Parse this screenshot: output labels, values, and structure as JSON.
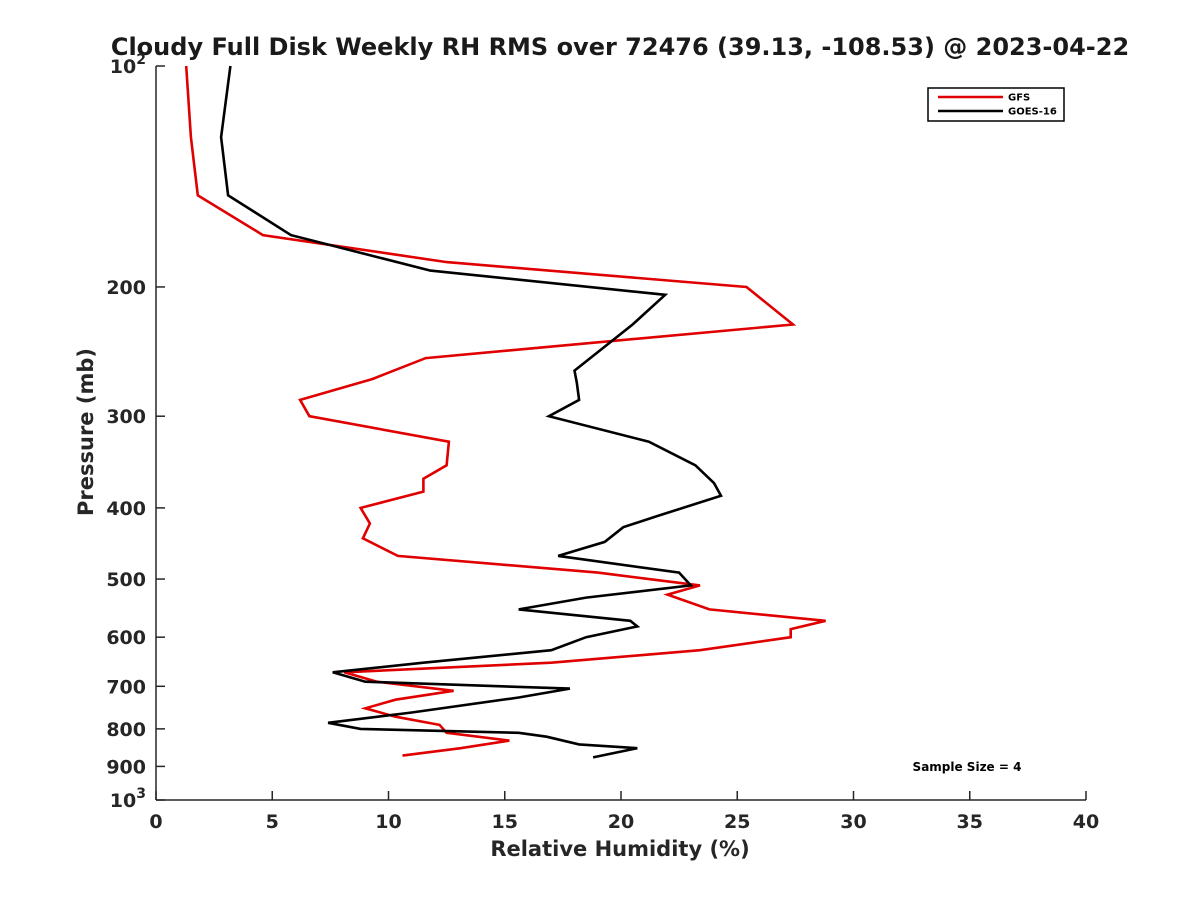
{
  "chart_data": {
    "type": "line",
    "title": "Cloudy Full Disk Weekly RH RMS over 72476 (39.13, -108.53) @ 2023-04-22",
    "xlabel": "Relative Humidity (%)",
    "ylabel": "Pressure (mb)",
    "xlim": [
      0,
      40
    ],
    "ylim": [
      100,
      1000
    ],
    "yscale": "log",
    "y_reversed": true,
    "xticks": [
      0,
      5,
      10,
      15,
      20,
      25,
      30,
      35,
      40
    ],
    "yticks": [
      {
        "value": 100,
        "base": "10",
        "exp": "2"
      },
      {
        "value": 200,
        "label": "200"
      },
      {
        "value": 300,
        "label": "300"
      },
      {
        "value": 400,
        "label": "400"
      },
      {
        "value": 500,
        "label": "500"
      },
      {
        "value": 600,
        "label": "600"
      },
      {
        "value": 700,
        "label": "700"
      },
      {
        "value": 800,
        "label": "800"
      },
      {
        "value": 900,
        "label": "900"
      },
      {
        "value": 1000,
        "base": "10",
        "exp": "3"
      }
    ],
    "grid": false,
    "legend_position": "top-right",
    "annotation": "Sample Size = 4",
    "series": [
      {
        "name": "GFS",
        "color": "#e00000",
        "points": [
          [
            1.3,
            100
          ],
          [
            1.5,
            125
          ],
          [
            1.8,
            150
          ],
          [
            4.6,
            170
          ],
          [
            12.5,
            185
          ],
          [
            25.4,
            200
          ],
          [
            27.4,
            225
          ],
          [
            11.6,
            250
          ],
          [
            9.3,
            267
          ],
          [
            6.2,
            285
          ],
          [
            6.6,
            300
          ],
          [
            12.6,
            325
          ],
          [
            12.5,
            350
          ],
          [
            11.5,
            365
          ],
          [
            11.5,
            380
          ],
          [
            8.8,
            400
          ],
          [
            9.2,
            420
          ],
          [
            8.9,
            440
          ],
          [
            10.4,
            465
          ],
          [
            19.0,
            490
          ],
          [
            23.4,
            510
          ],
          [
            22.0,
            525
          ],
          [
            23.8,
            550
          ],
          [
            28.8,
            570
          ],
          [
            27.3,
            585
          ],
          [
            27.3,
            600
          ],
          [
            23.4,
            625
          ],
          [
            17.0,
            650
          ],
          [
            8.1,
            670
          ],
          [
            9.5,
            690
          ],
          [
            12.8,
            710
          ],
          [
            10.3,
            730
          ],
          [
            9.0,
            750
          ],
          [
            10.3,
            770
          ],
          [
            12.2,
            790
          ],
          [
            12.5,
            810
          ],
          [
            15.2,
            830
          ],
          [
            13.1,
            850
          ],
          [
            10.6,
            870
          ]
        ]
      },
      {
        "name": "GOES-16",
        "color": "#000000",
        "points": [
          [
            3.2,
            100
          ],
          [
            2.8,
            125
          ],
          [
            3.1,
            150
          ],
          [
            5.8,
            170
          ],
          [
            11.8,
            190
          ],
          [
            21.9,
            205
          ],
          [
            20.5,
            225
          ],
          [
            18.0,
            260
          ],
          [
            18.1,
            270
          ],
          [
            18.2,
            285
          ],
          [
            16.9,
            300
          ],
          [
            21.2,
            325
          ],
          [
            23.2,
            350
          ],
          [
            24.0,
            370
          ],
          [
            24.3,
            385
          ],
          [
            21.6,
            410
          ],
          [
            20.1,
            425
          ],
          [
            19.3,
            445
          ],
          [
            17.3,
            465
          ],
          [
            22.5,
            490
          ],
          [
            23.0,
            510
          ],
          [
            18.5,
            530
          ],
          [
            15.6,
            550
          ],
          [
            20.4,
            570
          ],
          [
            20.7,
            580
          ],
          [
            18.5,
            600
          ],
          [
            17.0,
            625
          ],
          [
            11.5,
            650
          ],
          [
            7.6,
            670
          ],
          [
            9.0,
            690
          ],
          [
            17.8,
            705
          ],
          [
            15.6,
            725
          ],
          [
            11.0,
            760
          ],
          [
            7.4,
            785
          ],
          [
            8.8,
            800
          ],
          [
            15.6,
            810
          ],
          [
            16.8,
            820
          ],
          [
            18.2,
            840
          ],
          [
            20.7,
            850
          ],
          [
            18.8,
            875
          ]
        ]
      }
    ]
  }
}
